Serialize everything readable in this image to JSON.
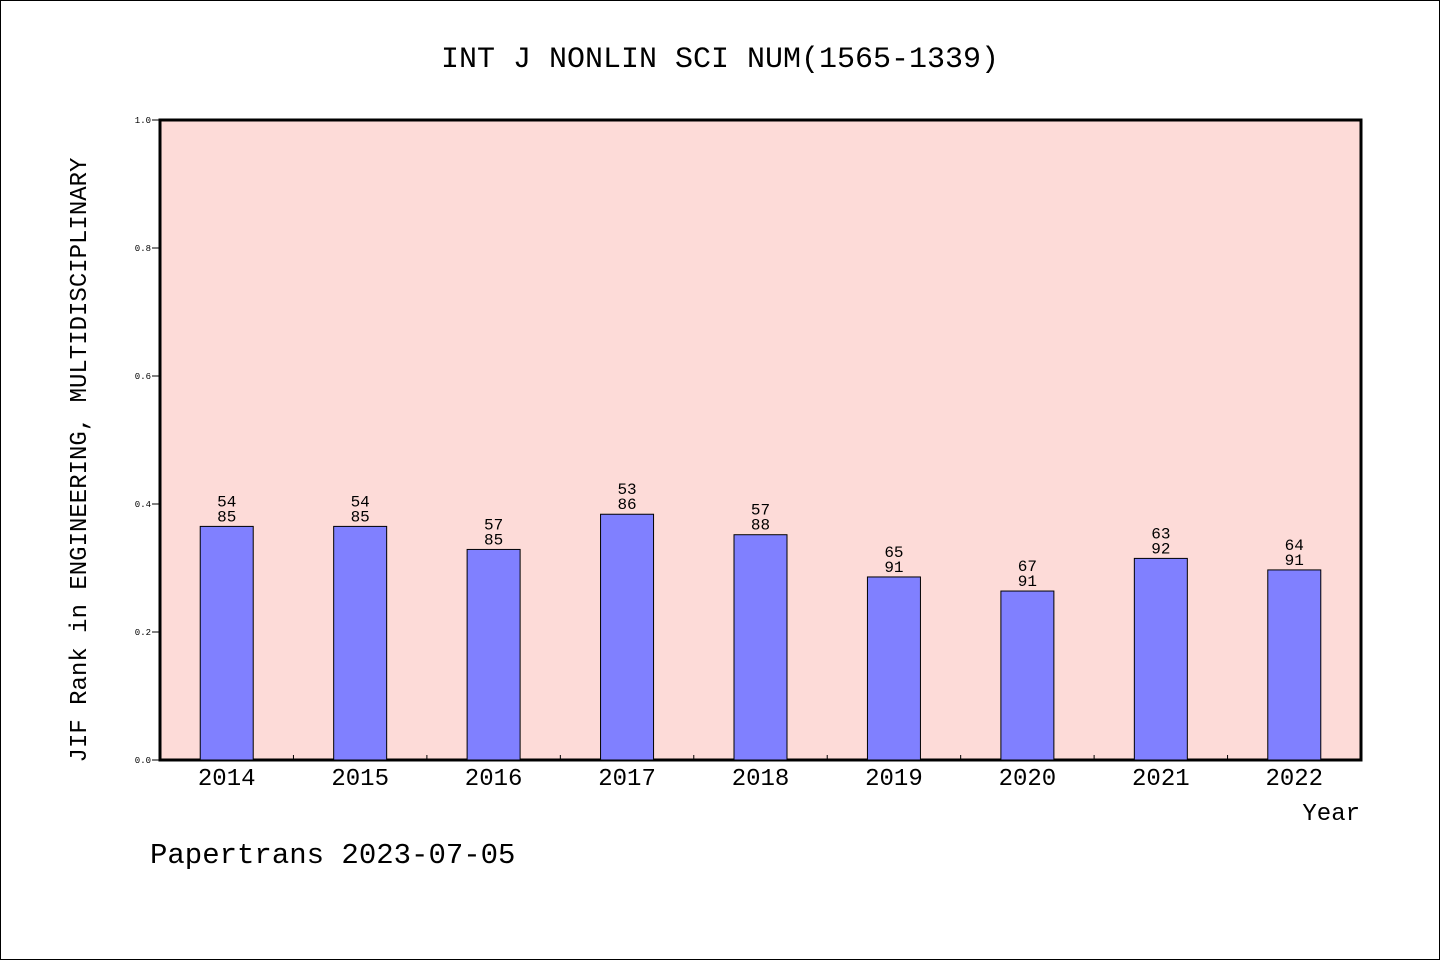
{
  "chart_data": {
    "type": "bar",
    "title": "INT J NONLIN SCI NUM(1565-1339)",
    "xlabel": "Year",
    "ylabel": "JIF Rank in ENGINEERING, MULTIDISCIPLINARY",
    "ylim": [
      0,
      1.0
    ],
    "yticks": [
      "0.0",
      "0.2",
      "0.4",
      "0.6",
      "0.8",
      "1.0"
    ],
    "categories": [
      "2014",
      "2015",
      "2016",
      "2017",
      "2018",
      "2019",
      "2020",
      "2021",
      "2022"
    ],
    "values": [
      0.365,
      0.365,
      0.329,
      0.384,
      0.352,
      0.286,
      0.264,
      0.315,
      0.297
    ],
    "ranks": [
      "54",
      "54",
      "57",
      "53",
      "57",
      "65",
      "67",
      "63",
      "64"
    ],
    "totals": [
      "85",
      "85",
      "85",
      "86",
      "88",
      "91",
      "91",
      "92",
      "91"
    ],
    "grid": false,
    "colors": {
      "bar": "#8080ff",
      "plot_bg": "#fddbd8"
    }
  },
  "footer": "Papertrans 2023-07-05"
}
